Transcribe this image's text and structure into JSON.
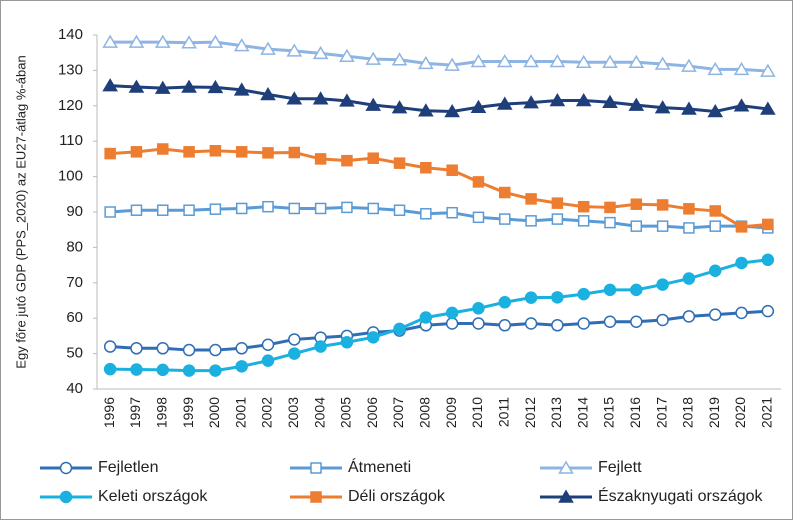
{
  "chart_data": {
    "type": "line",
    "y_label": "Egy főre jutó GDP (PPS_2020) az EU27-átlag %-ában",
    "categories": [
      "1996",
      "1997",
      "1998",
      "1999",
      "2000",
      "2001",
      "2002",
      "2003",
      "2004",
      "2005",
      "2006",
      "2007",
      "2008",
      "2009",
      "2010",
      "2011",
      "2012",
      "2013",
      "2014",
      "2015",
      "2016",
      "2017",
      "2018",
      "2019",
      "2020",
      "2021"
    ],
    "ylim": [
      40,
      140
    ],
    "yticks": [
      40,
      50,
      60,
      70,
      80,
      90,
      100,
      110,
      120,
      130,
      140
    ],
    "grid": false,
    "legend": "bottom",
    "series": [
      {
        "name": "Fejletlen",
        "color": "#2f6db5",
        "marker": "circle",
        "filled": false,
        "values": [
          52,
          51.5,
          51.5,
          51,
          51,
          51.5,
          52.5,
          54,
          54.5,
          55,
          56,
          56.5,
          58,
          58.5,
          58.5,
          58,
          58.5,
          58,
          58.5,
          59,
          59,
          59.5,
          60.5,
          61,
          61.5,
          62
        ]
      },
      {
        "name": "Átmeneti",
        "color": "#5b9bd5",
        "marker": "square",
        "filled": false,
        "values": [
          90,
          90.5,
          90.5,
          90.5,
          90.8,
          91,
          91.5,
          91,
          91,
          91.3,
          91,
          90.5,
          89.5,
          89.8,
          88.5,
          88,
          87.5,
          88,
          87.5,
          87,
          86,
          86,
          85.5,
          86,
          86,
          85.5
        ]
      },
      {
        "name": "Fejlett",
        "color": "#8db4e2",
        "marker": "triangle",
        "filled": false,
        "values": [
          138,
          138,
          138,
          137.8,
          138,
          137,
          136,
          135.5,
          134.8,
          134,
          133.2,
          133,
          132,
          131.5,
          132.5,
          132.5,
          132.5,
          132.5,
          132.3,
          132.3,
          132.3,
          131.8,
          131.2,
          130.3,
          130.3,
          129.8
        ]
      },
      {
        "name": "Keleti országok",
        "color": "#1ab0e0",
        "marker": "circle",
        "filled": true,
        "values": [
          45.6,
          45.5,
          45.4,
          45.2,
          45.2,
          46.4,
          48,
          50,
          52,
          53.2,
          54.6,
          57,
          60.2,
          61.5,
          62.8,
          64.5,
          65.8,
          65.9,
          66.8,
          68,
          68,
          69.5,
          71.2,
          73.4,
          75.6,
          76.5
        ]
      },
      {
        "name": "Déli országok",
        "color": "#ed7d31",
        "marker": "square",
        "filled": true,
        "values": [
          106.5,
          107,
          107.8,
          107,
          107.3,
          107,
          106.7,
          106.8,
          105,
          104.5,
          105.2,
          103.8,
          102.5,
          101.8,
          98.5,
          95.5,
          93.7,
          92.5,
          91.5,
          91.3,
          92.2,
          92,
          90.9,
          90.3,
          85.8,
          86.5
        ]
      },
      {
        "name": "Északnyugati országok",
        "color": "#1f3f7a",
        "marker": "triangle",
        "filled": true,
        "values": [
          125.7,
          125.3,
          125,
          125.3,
          125.2,
          124.5,
          123.2,
          122,
          122,
          121.4,
          120.2,
          119.5,
          118.6,
          118.4,
          119.6,
          120.5,
          120.9,
          121.5,
          121.5,
          121,
          120.2,
          119.5,
          119.1,
          118.4,
          120,
          119.1
        ]
      }
    ]
  }
}
